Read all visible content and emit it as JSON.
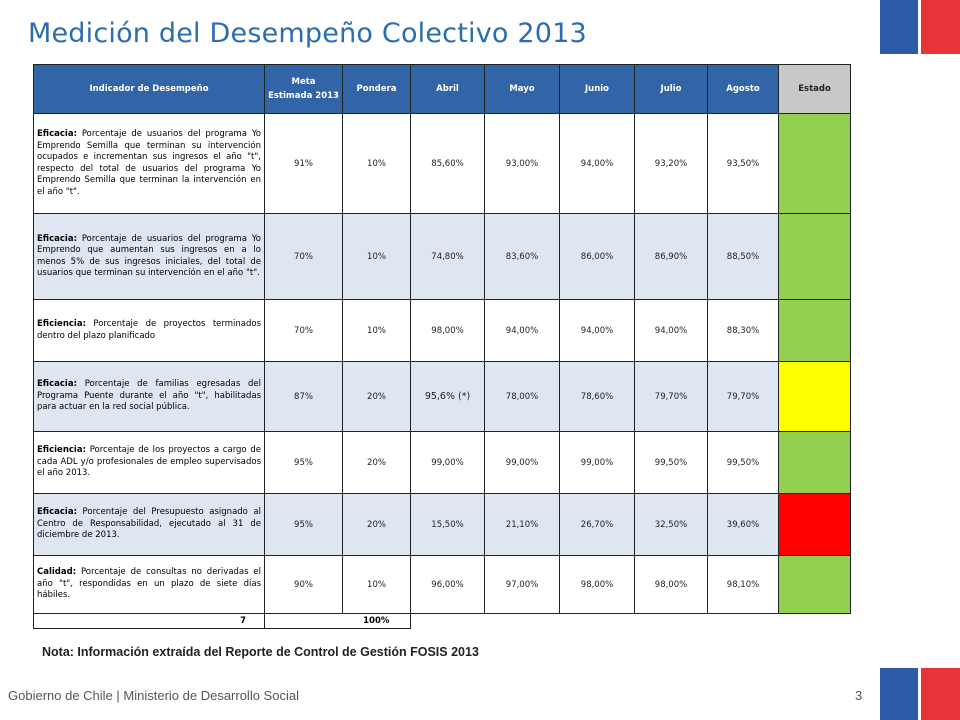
{
  "title": "Medición del Desempeño Colectivo 2013",
  "colors": {
    "title": "#2a6db0",
    "header_bg": "#3165a8",
    "green": "#92d050",
    "yellow": "#ffff00",
    "red": "#ff0000",
    "flag_blue": "#2a5aa8",
    "flag_red": "#e8333b"
  },
  "table": {
    "headers": {
      "indicador": "Indicador de Desempeño",
      "meta_a": "Meta",
      "meta_b": "Estimada 2013",
      "pondera": "Pondera",
      "abril": "Abril",
      "mayo": "Mayo",
      "junio": "Junio",
      "julio": "Julio",
      "agosto": "Agosto",
      "estado": "Estado"
    },
    "rows": [
      {
        "label": "Eficacia:",
        "text": "Porcentaje de usuarios del programa Yo Emprendo Semilla que terminan su intervención ocupados e incrementan sus ingresos el año \"t\", respecto del total de usuarios del programa Yo Emprendo Semilla que terminan la intervención en el año \"t\".",
        "meta": "91%",
        "pondera": "10%",
        "abril": "85,60%",
        "mayo": "93,00%",
        "junio": "94,00%",
        "julio": "93,20%",
        "agosto": "93,50%",
        "estado": "green"
      },
      {
        "label": "Eficacia:",
        "text": "Porcentaje de usuarios del programa Yo Emprendo que aumentan sus ingresos en a lo menos 5% de sus ingresos iniciales, del total de usuarios que terminan su intervención en el año \"t\".",
        "meta": "70%",
        "pondera": "10%",
        "abril": "74,80%",
        "mayo": "83,60%",
        "junio": "86,00%",
        "julio": "86,90%",
        "agosto": "88,50%",
        "estado": "green"
      },
      {
        "label": "Eficiencia:",
        "text": "Porcentaje de proyectos terminados dentro del plazo planificado",
        "meta": "70%",
        "pondera": "10%",
        "abril": "98,00%",
        "mayo": "94,00%",
        "junio": "94,00%",
        "julio": "94,00%",
        "agosto": "88,30%",
        "estado": "green"
      },
      {
        "label": "Eficacia:",
        "text": "Porcentaje de familias egresadas del Programa Puente durante el año \"t\", habilitadas para actuar en la red social pública.",
        "meta": "87%",
        "pondera": "20%",
        "abril": "95,6% (*)",
        "mayo": "78,00%",
        "junio": "78,60%",
        "julio": "79,70%",
        "agosto": "79,70%",
        "estado": "yellow"
      },
      {
        "label": "Eficiencia:",
        "text": "Porcentaje de los proyectos a cargo de cada ADL y/o profesionales de empleo supervisados el año 2013.",
        "meta": "95%",
        "pondera": "20%",
        "abril": "99,00%",
        "mayo": "99,00%",
        "junio": "99,00%",
        "julio": "99,50%",
        "agosto": "99,50%",
        "estado": "green"
      },
      {
        "label": "Eficacia:",
        "text": "Porcentaje del Presupuesto asignado al Centro de Responsabilidad, ejecutado al 31 de diciembre de 2013.",
        "meta": "95%",
        "pondera": "20%",
        "abril": "15,50%",
        "mayo": "21,10%",
        "junio": "26,70%",
        "julio": "32,50%",
        "agosto": "39,60%",
        "estado": "red"
      },
      {
        "label": "Calidad:",
        "text": "Porcentaje de consultas no derivadas el año \"t\", respondidas en un plazo de siete días hábiles.",
        "meta": "90%",
        "pondera": "10%",
        "abril": "96,00%",
        "mayo": "97,00%",
        "junio": "98,00%",
        "julio": "98,00%",
        "agosto": "98,10%",
        "estado": "green"
      }
    ],
    "total": {
      "count": "7",
      "pondera": "100%"
    }
  },
  "note": "Nota: Información extraída del Reporte de Control de Gestión FOSIS 2013",
  "footer": "Gobierno de Chile | Ministerio de Desarrollo Social",
  "page_number": "3"
}
